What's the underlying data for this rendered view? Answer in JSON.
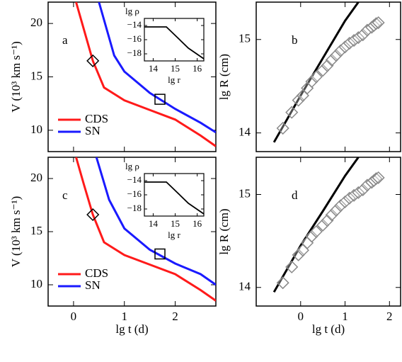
{
  "chart_data": [
    {
      "type": "line",
      "panel_label": "a",
      "ylabel": "V (10³ km s⁻¹)",
      "xlim": [
        -0.5,
        2.8
      ],
      "xticks": [
        0,
        1,
        2
      ],
      "show_xtick_labels": false,
      "ylim": [
        8,
        22
      ],
      "yticks": [
        10,
        15,
        20
      ],
      "series": [
        {
          "name": "CDS",
          "color": "#ff1a1a",
          "x": [
            0.05,
            0.2,
            0.38,
            0.6,
            1,
            1.5,
            2,
            2.5,
            2.8
          ],
          "values": [
            22,
            19.5,
            16.5,
            14,
            12.8,
            11.9,
            11,
            9.5,
            8.5
          ]
        },
        {
          "name": "SN",
          "color": "#1a1aff",
          "x": [
            0.5,
            0.8,
            1,
            1.5,
            2,
            2.5,
            2.8
          ],
          "values": [
            22,
            17,
            15.5,
            13.5,
            12,
            10.7,
            9.8
          ]
        }
      ],
      "markers": [
        {
          "shape": "diamond",
          "x": [
            0.38
          ],
          "values": [
            16.5
          ]
        },
        {
          "shape": "square",
          "x": [
            1.7
          ],
          "values": [
            12.9
          ]
        }
      ],
      "inset": {
        "xlabel": "lg r",
        "ylabel": "lg ρ",
        "xlim": [
          13.6,
          16.3
        ],
        "ylim": [
          -19,
          -13
        ],
        "xticks": [
          14,
          15,
          16
        ],
        "yticks": [
          {
            "value": -14,
            "label": "−14"
          },
          {
            "value": -16,
            "label": "−16"
          },
          {
            "value": -18,
            "label": "−18"
          }
        ],
        "series": [
          {
            "color": "#000000",
            "x": [
              13.6,
              14.6,
              15.6,
              16.3
            ],
            "values": [
              -14.2,
              -14.2,
              -17.2,
              -18.7
            ]
          }
        ]
      }
    },
    {
      "type": "line",
      "panel_label": "b",
      "ylabel": "lg R (cm)",
      "xlim": [
        -1,
        2.25
      ],
      "xticks": [
        0,
        1,
        2
      ],
      "show_xtick_labels": false,
      "ylim": [
        13.8,
        15.4
      ],
      "yticks": [
        14,
        15
      ],
      "series": [
        {
          "color": "#000000",
          "x": [
            -0.6,
            -0.3,
            0,
            0.5,
            1,
            1.3
          ],
          "values": [
            13.9,
            14.15,
            14.4,
            14.8,
            15.2,
            15.4
          ]
        }
      ],
      "markers": [
        {
          "shape": "diamond",
          "x": [
            -0.4,
            -0.2,
            -0.05,
            0.05,
            0.15,
            0.25,
            0.35,
            0.5,
            0.6,
            0.7,
            0.8,
            0.9,
            1.0,
            1.1,
            1.2,
            1.3,
            1.4,
            1.5,
            1.6,
            1.65,
            1.7,
            1.75
          ],
          "values": [
            14.05,
            14.22,
            14.35,
            14.4,
            14.48,
            14.55,
            14.6,
            14.67,
            14.72,
            14.78,
            14.83,
            14.88,
            14.92,
            14.96,
            14.99,
            15.02,
            15.05,
            15.1,
            15.13,
            15.15,
            15.17,
            15.18
          ]
        }
      ]
    },
    {
      "type": "line",
      "panel_label": "c",
      "ylabel": "V (10³ km s⁻¹)",
      "xlabel": "lg t (d)",
      "xlim": [
        -0.5,
        2.8
      ],
      "xticks": [
        0,
        1,
        2
      ],
      "show_xtick_labels": true,
      "ylim": [
        8,
        22
      ],
      "yticks": [
        10,
        15,
        20
      ],
      "series": [
        {
          "name": "CDS",
          "color": "#ff1a1a",
          "x": [
            0.05,
            0.2,
            0.38,
            0.6,
            1,
            1.5,
            2,
            2.5,
            2.8
          ],
          "values": [
            22,
            19.5,
            16.6,
            14,
            12.8,
            11.9,
            11,
            9.5,
            8.5
          ]
        },
        {
          "name": "SN",
          "color": "#1a1aff",
          "x": [
            0.45,
            0.7,
            1,
            1.5,
            2,
            2.5,
            2.8
          ],
          "values": [
            22,
            18,
            15.3,
            13.3,
            12,
            11,
            10
          ]
        }
      ],
      "markers": [
        {
          "shape": "diamond",
          "x": [
            0.38
          ],
          "values": [
            16.6
          ]
        },
        {
          "shape": "square",
          "x": [
            1.7
          ],
          "values": [
            12.9
          ]
        }
      ],
      "inset": {
        "xlabel": "lg r",
        "ylabel": "lg ρ",
        "xlim": [
          13.6,
          16.3
        ],
        "ylim": [
          -19,
          -13
        ],
        "xticks": [
          14,
          15,
          16
        ],
        "yticks": [
          {
            "value": -14,
            "label": "−14"
          },
          {
            "value": -16,
            "label": "−16"
          },
          {
            "value": -18,
            "label": "−18"
          }
        ],
        "series": [
          {
            "color": "#000000",
            "x": [
              13.6,
              14.6,
              15.6,
              16.3
            ],
            "values": [
              -14.2,
              -14.2,
              -17.2,
              -18.7
            ]
          }
        ]
      }
    },
    {
      "type": "line",
      "panel_label": "d",
      "ylabel": "lg R (cm)",
      "xlabel": "lg t (d)",
      "xlim": [
        -1,
        2.25
      ],
      "xticks": [
        0,
        1,
        2
      ],
      "show_xtick_labels": true,
      "ylim": [
        13.8,
        15.4
      ],
      "yticks": [
        14,
        15
      ],
      "series": [
        {
          "color": "#000000",
          "x": [
            -0.6,
            -0.3,
            0,
            0.5,
            1,
            1.3
          ],
          "values": [
            13.95,
            14.2,
            14.45,
            14.82,
            15.2,
            15.4
          ]
        }
      ],
      "markers": [
        {
          "shape": "diamond",
          "x": [
            -0.4,
            -0.2,
            -0.05,
            0.05,
            0.15,
            0.25,
            0.35,
            0.5,
            0.6,
            0.7,
            0.8,
            0.9,
            1.0,
            1.1,
            1.2,
            1.3,
            1.4,
            1.5,
            1.6,
            1.65,
            1.7,
            1.75
          ],
          "values": [
            14.05,
            14.22,
            14.35,
            14.4,
            14.48,
            14.55,
            14.6,
            14.67,
            14.72,
            14.78,
            14.83,
            14.88,
            14.92,
            14.96,
            14.99,
            15.02,
            15.05,
            15.1,
            15.13,
            15.15,
            15.17,
            15.18
          ]
        }
      ]
    }
  ]
}
